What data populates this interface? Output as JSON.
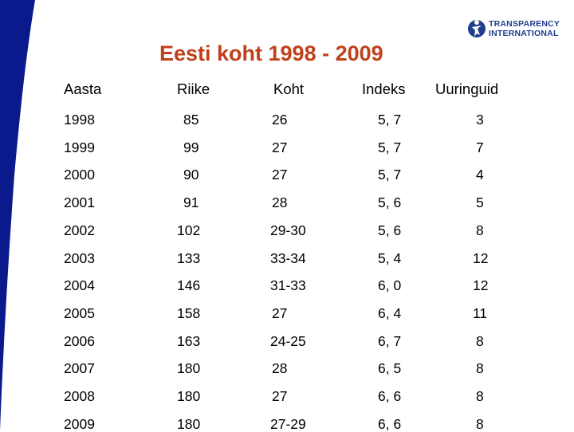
{
  "logo": {
    "line1": "TRANSPARENCY",
    "line2": "INTERNATIONAL"
  },
  "title": "Eesti koht 1998 - 2009",
  "headers": [
    "Aasta",
    "Riike",
    "Koht",
    "Indeks",
    "Uuringuid"
  ],
  "rows": [
    [
      "1998",
      "85",
      "26",
      "5, 7",
      "3"
    ],
    [
      "1999",
      "99",
      "27",
      "5, 7",
      "7"
    ],
    [
      "2000",
      "90",
      "27",
      "5, 7",
      "4"
    ],
    [
      "2001",
      "91",
      "28",
      "5, 6",
      "5"
    ],
    [
      "2002",
      "102",
      "29-30",
      "5, 6",
      "8"
    ],
    [
      "2003",
      "133",
      "33-34",
      "5, 4",
      "12"
    ],
    [
      "2004",
      "146",
      "31-33",
      "6, 0",
      "12"
    ],
    [
      "2005",
      "158",
      "27",
      "6, 4",
      "11"
    ],
    [
      "2006",
      "163",
      "24-25",
      "6, 7",
      "8"
    ],
    [
      "2007",
      "180",
      "28",
      "6, 5",
      "8"
    ],
    [
      "2008",
      "180",
      "27",
      "6, 6",
      "8"
    ],
    [
      "2009",
      "180",
      "27-29",
      "6, 6",
      "8"
    ]
  ],
  "colors": {
    "stripe": "#0a1a8c",
    "title": "#c0401a",
    "logo": "#1f3e8c"
  }
}
